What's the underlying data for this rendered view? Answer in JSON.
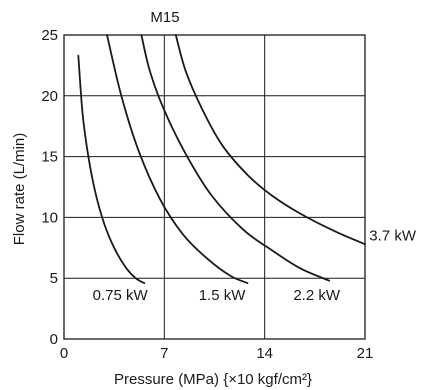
{
  "chart_data": {
    "type": "line",
    "title": "M15",
    "xlabel": "Pressure (MPa) {×10 kgf/cm²}",
    "ylabel": "Flow rate (L/min)",
    "xlim": [
      0,
      21
    ],
    "ylim": [
      0,
      25
    ],
    "x_ticks": [
      0,
      7,
      14,
      21
    ],
    "y_ticks": [
      0,
      5,
      10,
      15,
      20,
      25
    ],
    "grid": true,
    "line_color": "#1a1a1a",
    "series": [
      {
        "name": "0.75 kW",
        "label_at": [
          2.0,
          3.6
        ],
        "points": [
          [
            1.0,
            23.3
          ],
          [
            1.3,
            18.5
          ],
          [
            1.7,
            15.0
          ],
          [
            2.2,
            12.0
          ],
          [
            2.8,
            9.5
          ],
          [
            3.5,
            7.5
          ],
          [
            4.3,
            5.9
          ],
          [
            5.0,
            5.0
          ],
          [
            5.6,
            4.6
          ]
        ]
      },
      {
        "name": "1.5 kW",
        "label_at": [
          9.4,
          3.6
        ],
        "points": [
          [
            3.0,
            25.0
          ],
          [
            4.0,
            20.0
          ],
          [
            5.2,
            15.5
          ],
          [
            6.7,
            11.5
          ],
          [
            8.3,
            8.6
          ],
          [
            10.0,
            6.6
          ],
          [
            11.6,
            5.2
          ],
          [
            12.8,
            4.6
          ]
        ]
      },
      {
        "name": "2.2 kW",
        "label_at": [
          16.0,
          3.6
        ],
        "points": [
          [
            5.4,
            25.0
          ],
          [
            6.0,
            22.0
          ],
          [
            7.0,
            18.8
          ],
          [
            8.5,
            15.2
          ],
          [
            10.3,
            11.8
          ],
          [
            12.5,
            9.0
          ],
          [
            14.5,
            7.3
          ],
          [
            16.5,
            5.8
          ],
          [
            18.5,
            4.8
          ]
        ]
      },
      {
        "name": "3.7 kW",
        "label_at": [
          21.3,
          8.5
        ],
        "points": [
          [
            7.8,
            25.0
          ],
          [
            8.5,
            22.0
          ],
          [
            9.6,
            19.0
          ],
          [
            11.0,
            16.0
          ],
          [
            12.8,
            13.5
          ],
          [
            14.5,
            11.8
          ],
          [
            16.5,
            10.3
          ],
          [
            19.0,
            8.8
          ],
          [
            21.0,
            7.8
          ]
        ]
      }
    ]
  }
}
